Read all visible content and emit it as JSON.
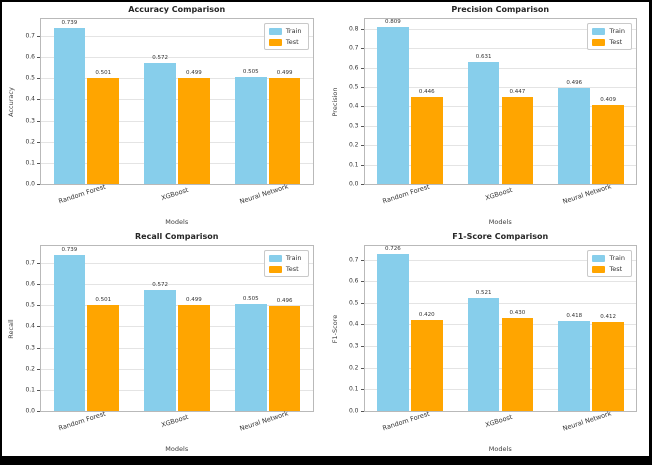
{
  "figure": {
    "background": "#ffffff",
    "frame_color": "#000000",
    "layout": "2x2-subplots"
  },
  "colors": {
    "train": "#87CEEB",
    "test": "#FFA500",
    "grid": "#e4e4e4",
    "spine": "#b9b9b9"
  },
  "legend": {
    "train_label": "Train",
    "test_label": "Test",
    "position": "upper right"
  },
  "chart_data": [
    {
      "type": "bar",
      "title": "Accuracy Comparison",
      "xlabel": "Models",
      "ylabel": "Accuracy",
      "categories": [
        "Random Forest",
        "XGBoost",
        "Neural Network"
      ],
      "series": [
        {
          "name": "Train",
          "values": [
            0.739,
            0.572,
            0.505
          ]
        },
        {
          "name": "Test",
          "values": [
            0.501,
            0.499,
            0.499
          ]
        }
      ],
      "ylim": [
        0,
        0.78
      ],
      "yticks": [
        "0.0",
        "0.1",
        "0.2",
        "0.3",
        "0.4",
        "0.5",
        "0.6",
        "0.7"
      ],
      "grid": true,
      "legend_position": "upper right"
    },
    {
      "type": "bar",
      "title": "Precision Comparison",
      "xlabel": "Models",
      "ylabel": "Precision",
      "categories": [
        "Random Forest",
        "XGBoost",
        "Neural Network"
      ],
      "series": [
        {
          "name": "Train",
          "values": [
            0.809,
            0.631,
            0.496
          ]
        },
        {
          "name": "Test",
          "values": [
            0.446,
            0.447,
            0.409
          ]
        }
      ],
      "ylim": [
        0,
        0.85
      ],
      "yticks": [
        "0.0",
        "0.1",
        "0.2",
        "0.3",
        "0.4",
        "0.5",
        "0.6",
        "0.7",
        "0.8"
      ],
      "grid": true,
      "legend_position": "upper right"
    },
    {
      "type": "bar",
      "title": "Recall Comparison",
      "xlabel": "Models",
      "ylabel": "Recall",
      "categories": [
        "Random Forest",
        "XGBoost",
        "Neural Network"
      ],
      "series": [
        {
          "name": "Train",
          "values": [
            0.739,
            0.572,
            0.505
          ]
        },
        {
          "name": "Test",
          "values": [
            0.501,
            0.499,
            0.496
          ]
        }
      ],
      "ylim": [
        0,
        0.78
      ],
      "yticks": [
        "0.0",
        "0.1",
        "0.2",
        "0.3",
        "0.4",
        "0.5",
        "0.6",
        "0.7"
      ],
      "grid": true,
      "legend_position": "upper right"
    },
    {
      "type": "bar",
      "title": "F1-Score Comparison",
      "xlabel": "Models",
      "ylabel": "F1-Score",
      "categories": [
        "Random Forest",
        "XGBoost",
        "Neural Network"
      ],
      "series": [
        {
          "name": "Train",
          "values": [
            0.726,
            0.521,
            0.418
          ]
        },
        {
          "name": "Test",
          "values": [
            0.42,
            0.43,
            0.412
          ]
        }
      ],
      "ylim": [
        0,
        0.763
      ],
      "yticks": [
        "0.0",
        "0.1",
        "0.2",
        "0.3",
        "0.4",
        "0.5",
        "0.6",
        "0.7"
      ],
      "grid": true,
      "legend_position": "upper right"
    }
  ]
}
